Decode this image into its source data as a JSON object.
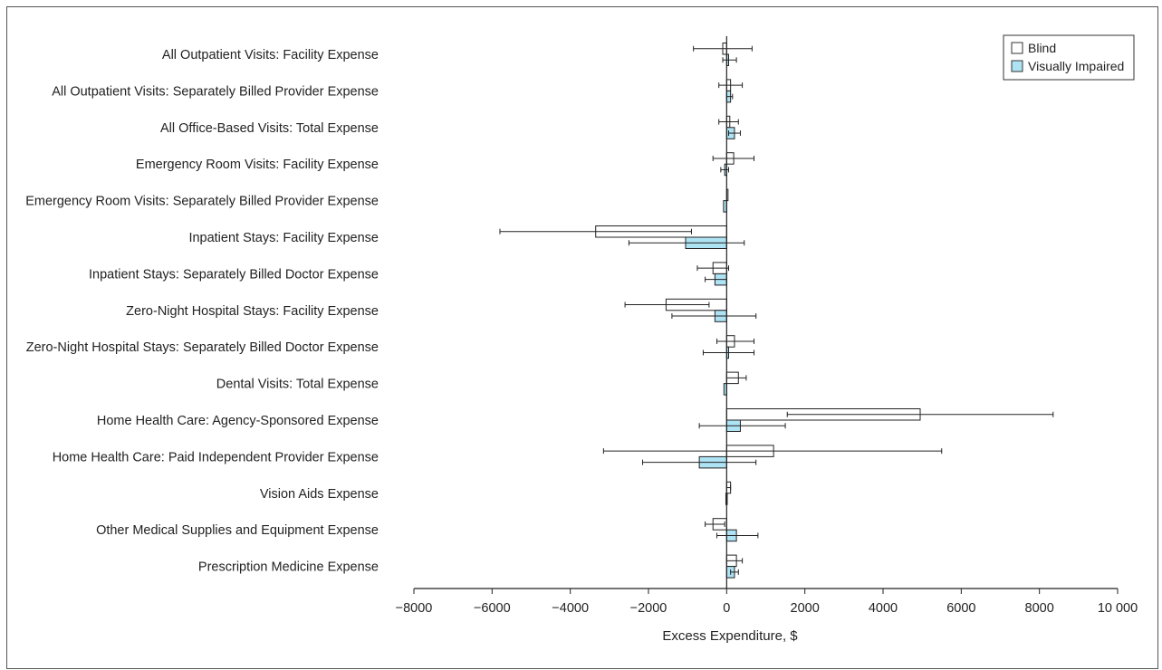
{
  "chart_data": {
    "type": "bar",
    "orientation": "horizontal",
    "title": "",
    "xlabel": "Excess Expenditure, $",
    "ylabel": "",
    "xlim": [
      -8000,
      10000
    ],
    "xticks": [
      -8000,
      -6000,
      -4000,
      -2000,
      0,
      2000,
      4000,
      6000,
      8000,
      10000
    ],
    "xtick_labels": [
      "−8000",
      "−6000",
      "−4000",
      "−2000",
      "0",
      "2000",
      "4000",
      "6000",
      "8000",
      "10 000"
    ],
    "grid": false,
    "legend_position": "top-right",
    "categories": [
      "All Outpatient Visits: Facility Expense",
      "All Outpatient Visits: Separately Billed Provider Expense",
      "All Office-Based Visits: Total Expense",
      "Emergency Room Visits: Facility Expense",
      "Emergency Room Visits: Separately Billed Provider Expense",
      "Inpatient Stays: Facility Expense",
      "Inpatient Stays: Separately Billed Doctor Expense",
      "Zero-Night Hospital Stays: Facility Expense",
      "Zero-Night Hospital Stays: Separately Billed Doctor Expense",
      "Dental Visits: Total Expense",
      "Home Health Care: Agency-Sponsored Expense",
      "Home Health Care: Paid Independent Provider Expense",
      "Vision Aids Expense",
      "Other Medical Supplies and Equipment Expense",
      "Prescription Medicine Expense"
    ],
    "series": [
      {
        "name": "Blind",
        "color": "#ffffff",
        "values": [
          -100,
          100,
          80,
          180,
          0,
          -3350,
          -350,
          -1550,
          200,
          300,
          4950,
          1200,
          100,
          -350,
          250
        ],
        "ci_low": [
          -850,
          -200,
          -200,
          -350,
          0,
          -5800,
          -750,
          -2600,
          -250,
          0,
          1550,
          -3150,
          0,
          -550,
          0
        ],
        "ci_high": [
          650,
          400,
          300,
          700,
          0,
          -900,
          50,
          -450,
          700,
          500,
          8350,
          5500,
          100,
          -50,
          400
        ]
      },
      {
        "name": "Visually Impaired",
        "color": "#aee3f4",
        "values": [
          50,
          100,
          200,
          -50,
          -80,
          -1050,
          -300,
          -300,
          50,
          -70,
          350,
          -700,
          -20,
          250,
          200
        ],
        "ci_low": [
          -100,
          0,
          50,
          -150,
          -80,
          -2500,
          -550,
          -1400,
          -600,
          -70,
          -700,
          -2150,
          -20,
          -250,
          100
        ],
        "ci_high": [
          250,
          150,
          350,
          50,
          -80,
          450,
          0,
          750,
          700,
          -70,
          1500,
          750,
          -20,
          800,
          300
        ]
      }
    ]
  }
}
